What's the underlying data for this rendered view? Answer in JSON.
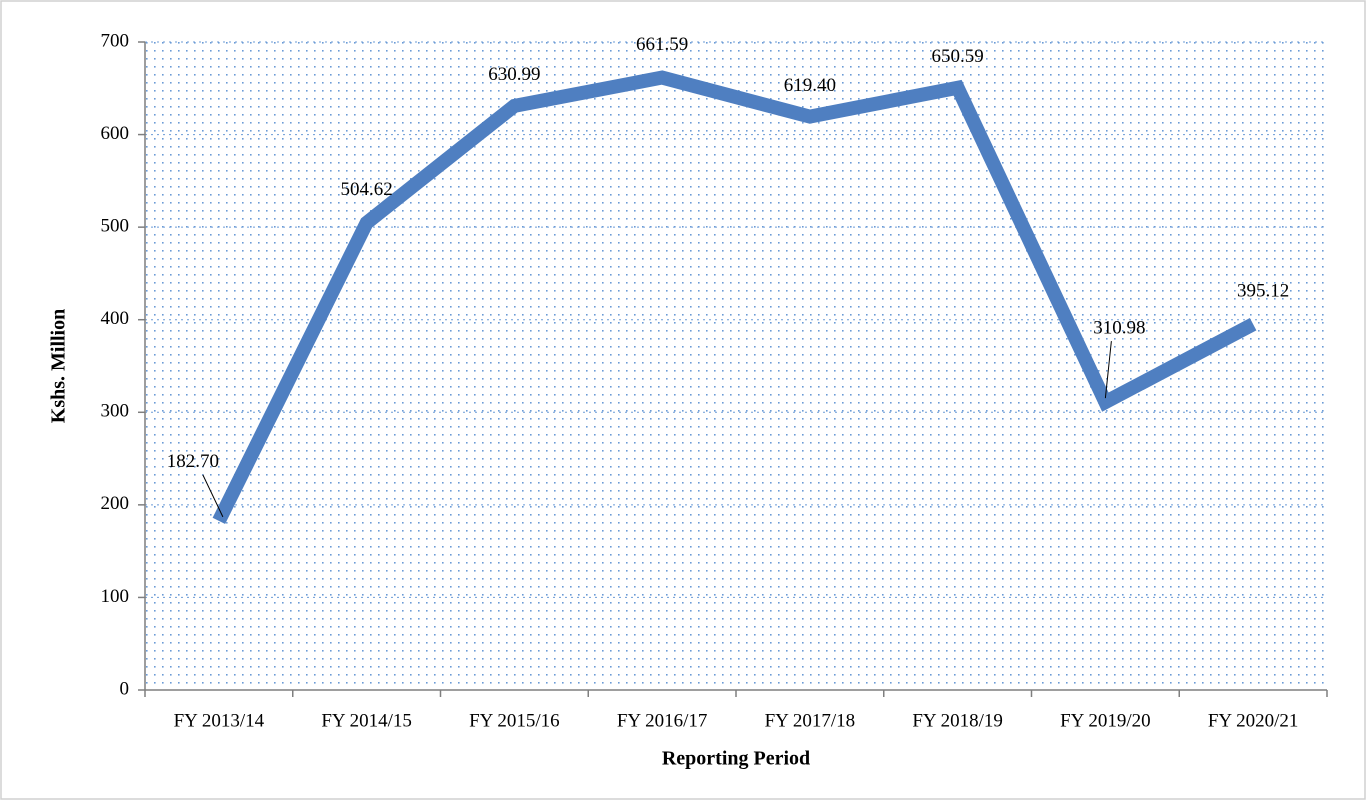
{
  "chart_data": {
    "type": "line",
    "x_label": "Reporting Period",
    "y_label": "Kshs. Million",
    "categories": [
      "FY 2013/14",
      "FY 2014/15",
      "FY 2015/16",
      "FY 2016/17",
      "FY 2017/18",
      "FY 2018/19",
      "FY 2019/20",
      "FY 2020/21"
    ],
    "series": [
      {
        "color": "#4f7fc1",
        "values": [
          182.7,
          504.62,
          630.99,
          661.59,
          619.4,
          650.59,
          310.98,
          395.12
        ],
        "value_labels": [
          "182.70",
          "504.62",
          "630.99",
          "661.59",
          "619.40",
          "650.59",
          "310.98",
          "395.12"
        ]
      }
    ],
    "ylim": [
      0,
      700
    ],
    "yticks": [
      0,
      100,
      200,
      300,
      400,
      500,
      600,
      700
    ],
    "grid": true
  }
}
